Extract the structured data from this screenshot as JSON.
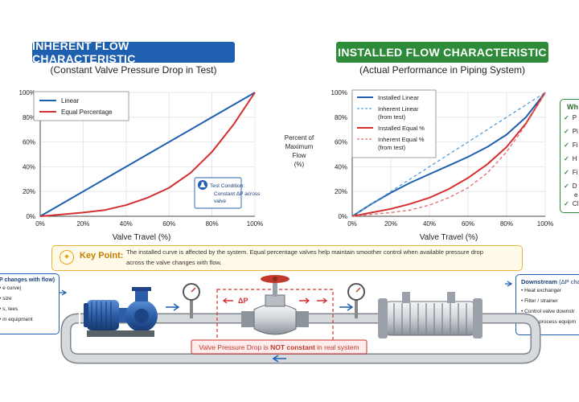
{
  "left_panel": {
    "title": "INHERENT FLOW CHARACTERISTIC",
    "subtitle": "(Constant Valve Pressure Drop in Test)",
    "title_color": "#1f5fb0"
  },
  "right_panel": {
    "title": "INSTALLED FLOW CHARACTERISTIC",
    "subtitle": "(Actual Performance in Piping System)",
    "title_color": "#2e8b3a"
  },
  "chart_data": [
    {
      "type": "line",
      "title": "INHERENT FLOW CHARACTERISTIC",
      "subtitle": "(Constant Valve Pressure Drop in Test)",
      "xlabel": "Valve Travel (%)",
      "ylabel": "",
      "xlim": [
        0,
        100
      ],
      "ylim": [
        0,
        100
      ],
      "x_ticks": [
        "0%",
        "20%",
        "40%",
        "60%",
        "80%",
        "100%"
      ],
      "y_ticks": [
        "0%",
        "20%",
        "40%",
        "60%",
        "80%",
        "100%"
      ],
      "grid": true,
      "legend_position": "top-left",
      "series": [
        {
          "name": "Linear",
          "color": "#1f5fb0",
          "dashed": false,
          "x": [
            0,
            100
          ],
          "y": [
            0,
            100
          ]
        },
        {
          "name": "Equal Percentage",
          "color": "#d62f2f",
          "dashed": false,
          "x": [
            0,
            10,
            20,
            30,
            40,
            50,
            60,
            70,
            80,
            90,
            100
          ],
          "y": [
            0,
            1.5,
            3,
            5,
            9,
            15,
            23,
            35,
            52,
            74,
            100
          ]
        }
      ],
      "annotation": {
        "title": "Test Condition:",
        "text": "Constant ΔP across valve"
      }
    },
    {
      "type": "line",
      "title": "INSTALLED FLOW CHARACTERISTIC",
      "subtitle": "(Actual Performance in Piping System)",
      "xlabel": "Valve Travel (%)",
      "ylabel": "Percent of Maximum Flow (%)",
      "xlim": [
        0,
        100
      ],
      "ylim": [
        0,
        100
      ],
      "x_ticks": [
        "0%",
        "20%",
        "40%",
        "60%",
        "80%",
        "100%"
      ],
      "y_ticks": [
        "0%",
        "20%",
        "40%",
        "60%",
        "80%",
        "100%"
      ],
      "grid": true,
      "legend_position": "top-left",
      "series": [
        {
          "name": "Installed Linear",
          "color": "#1f5fb0",
          "dashed": false,
          "x": [
            0,
            10,
            20,
            30,
            40,
            50,
            60,
            70,
            80,
            90,
            100
          ],
          "y": [
            0,
            10,
            19,
            27,
            34,
            41,
            48,
            56,
            66,
            80,
            100
          ]
        },
        {
          "name": "Inherent Linear (from test)",
          "color": "#5a9ed6",
          "dashed": true,
          "x": [
            0,
            100
          ],
          "y": [
            0,
            100
          ]
        },
        {
          "name": "Installed Equal %",
          "color": "#d62f2f",
          "dashed": false,
          "x": [
            0,
            10,
            20,
            30,
            40,
            50,
            60,
            70,
            80,
            90,
            100
          ],
          "y": [
            0,
            3,
            6,
            10,
            15,
            22,
            31,
            42,
            56,
            75,
            100
          ]
        },
        {
          "name": "Inherent Equal % (from test)",
          "color": "#e06a6a",
          "dashed": true,
          "x": [
            0,
            10,
            20,
            30,
            40,
            50,
            60,
            70,
            80,
            90,
            100
          ],
          "y": [
            0,
            1.5,
            3,
            5,
            9,
            15,
            23,
            35,
            52,
            74,
            100
          ]
        }
      ]
    }
  ],
  "sidebar": {
    "title": "Wh",
    "items": [
      "P",
      "Pi",
      "Fi",
      "H",
      "Fi",
      "D",
      "Cl"
    ],
    "extra": "e"
  },
  "key_point": {
    "label": "Key Point:",
    "text_line1": "The installed curve is affected by the system. Equal percentage valves help maintain smoother control when available pressure drop",
    "text_line2": "across the valve changes with flow."
  },
  "upstream": {
    "title": "P changes with flow)",
    "items": [
      "e curve)",
      "size",
      "s, tees",
      "m equipment"
    ]
  },
  "downstream": {
    "title": "Downstream",
    "title_suffix": "(ΔP cha",
    "items": [
      "Heat exchanger",
      "Filter / strainer",
      "Control valve downstr",
      "Other process equipm"
    ]
  },
  "diagram": {
    "delta_p": "ΔP",
    "pressure_drop_prefix": "Valve Pressure Drop is ",
    "pressure_drop_emph": "NOT constant",
    "pressure_drop_suffix": " in real system"
  }
}
